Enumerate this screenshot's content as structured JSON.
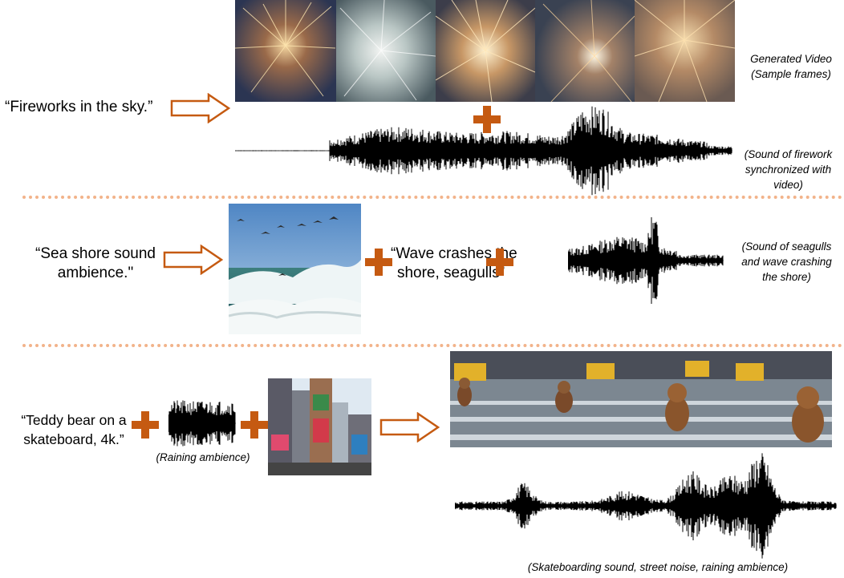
{
  "colors": {
    "accent": "#c55a11",
    "divider": "#f2b38a",
    "wave": "#000000"
  },
  "row1": {
    "prompt": "“Fireworks in the sky.”",
    "video_caption": [
      "Generated Video",
      "(Sample frames)"
    ],
    "audio_caption": [
      "(Sound of firework",
      "synchronized with",
      "video)"
    ]
  },
  "row2": {
    "prompt": [
      "“Sea shore sound",
      "ambience.\""
    ],
    "text_prompt": [
      "“Wave crashes the",
      "shore, seagulls”"
    ],
    "audio_caption": [
      "(Sound of seagulls",
      "and wave crashing",
      "the shore)"
    ]
  },
  "row3": {
    "prompt": [
      "“Teddy bear on a",
      "skateboard, 4k.”"
    ],
    "audio_input_caption": "(Raining ambience)",
    "audio_caption": "(Skateboarding sound, street noise, raining ambience)"
  }
}
